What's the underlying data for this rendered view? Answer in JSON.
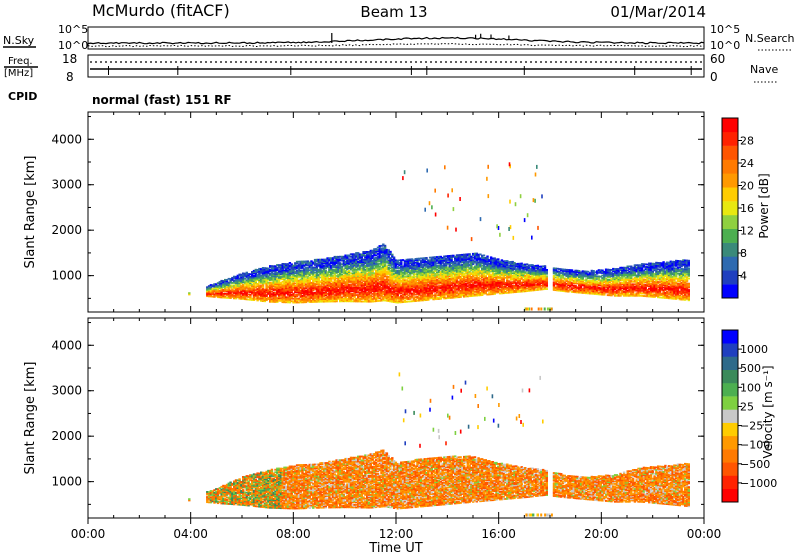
{
  "header": {
    "station": "McMurdo (fitACF)",
    "beam": "Beam 13",
    "date": "01/Mar/2014"
  },
  "noise_panel": {
    "left_label": "N.Sky",
    "right_label": "N.Search",
    "left_ticks": [
      "10^5",
      "10^0"
    ],
    "right_ticks": [
      "10^5",
      "10^0"
    ]
  },
  "freq_panel": {
    "left_label_1": "Freq.",
    "left_label_2": "[MHz]",
    "left_ticks": [
      "18",
      "8"
    ],
    "right_ticks": [
      "60",
      "0"
    ],
    "right_label": "Nave",
    "cpid_label": "CPID",
    "cpid_value": "normal (fast) 151 RF"
  },
  "colors": {
    "power": [
      "#0000ff",
      "#1f3fbf",
      "#2e6ab0",
      "#3a8a7a",
      "#4caf50",
      "#8fd040",
      "#e8e810",
      "#ffcc00",
      "#ff9900",
      "#ff7a00",
      "#ff5500",
      "#ff2200",
      "#ff0000"
    ],
    "velocity": [
      "#0000ff",
      "#1f3fbf",
      "#2e6a8a",
      "#3a8a5a",
      "#4caf50",
      "#7ed040",
      "#c8c8c8",
      "#ffcc00",
      "#ff9900",
      "#ff7a00",
      "#ff5500",
      "#ff2200",
      "#ff0000"
    ]
  },
  "chart_data": [
    {
      "type": "heatmap",
      "name": "power",
      "ylabel": "Slant Range [km]",
      "yticks": [
        "1000",
        "2000",
        "3000",
        "4000"
      ],
      "ylim": [
        200,
        4600
      ],
      "colorbar_label": "Power [dB]",
      "colorbar_ticks": [
        "4",
        "8",
        "12",
        "16",
        "20",
        "24",
        "28"
      ],
      "colorbar_range": [
        0,
        32
      ],
      "scatter_band": [
        {
          "t": 3.9,
          "lo": 580,
          "hi": 620
        },
        {
          "t": 5.0,
          "lo": 520,
          "hi": 850
        },
        {
          "t": 6.0,
          "lo": 480,
          "hi": 1050
        },
        {
          "t": 7.0,
          "lo": 420,
          "hi": 1200
        },
        {
          "t": 8.0,
          "lo": 400,
          "hi": 1300
        },
        {
          "t": 9.0,
          "lo": 420,
          "hi": 1350
        },
        {
          "t": 10.0,
          "lo": 430,
          "hi": 1450
        },
        {
          "t": 11.0,
          "lo": 420,
          "hi": 1550
        },
        {
          "t": 11.5,
          "lo": 450,
          "hi": 1700
        },
        {
          "t": 12.0,
          "lo": 400,
          "hi": 1350
        },
        {
          "t": 13.0,
          "lo": 450,
          "hi": 1400
        },
        {
          "t": 14.0,
          "lo": 500,
          "hi": 1450
        },
        {
          "t": 15.0,
          "lo": 550,
          "hi": 1500
        },
        {
          "t": 16.0,
          "lo": 600,
          "hi": 1350
        },
        {
          "t": 17.0,
          "lo": 650,
          "hi": 1250
        },
        {
          "t": 17.8,
          "lo": 700,
          "hi": 1200
        },
        {
          "t": 18.5,
          "lo": 650,
          "hi": 1150
        },
        {
          "t": 19.5,
          "lo": 600,
          "hi": 1100
        },
        {
          "t": 20.5,
          "lo": 550,
          "hi": 1150
        },
        {
          "t": 21.5,
          "lo": 550,
          "hi": 1250
        },
        {
          "t": 22.5,
          "lo": 500,
          "hi": 1300
        },
        {
          "t": 23.4,
          "lo": 450,
          "hi": 1350
        }
      ]
    },
    {
      "type": "heatmap",
      "name": "velocity",
      "ylabel": "Slant Range [km]",
      "yticks": [
        "1000",
        "2000",
        "3000",
        "4000"
      ],
      "ylim": [
        200,
        4600
      ],
      "colorbar_label": "Velocity [m s⁻¹]",
      "colorbar_ticks": [
        "1000",
        "500",
        "100",
        "25",
        "−25",
        "−100",
        "−500",
        "−1000"
      ],
      "scatter_band": [
        {
          "t": 3.9,
          "lo": 580,
          "hi": 620
        },
        {
          "t": 5.0,
          "lo": 520,
          "hi": 850
        },
        {
          "t": 6.0,
          "lo": 480,
          "hi": 1100
        },
        {
          "t": 7.0,
          "lo": 420,
          "hi": 1250
        },
        {
          "t": 8.0,
          "lo": 400,
          "hi": 1350
        },
        {
          "t": 9.0,
          "lo": 420,
          "hi": 1400
        },
        {
          "t": 10.0,
          "lo": 430,
          "hi": 1500
        },
        {
          "t": 11.0,
          "lo": 420,
          "hi": 1600
        },
        {
          "t": 11.5,
          "lo": 450,
          "hi": 1700
        },
        {
          "t": 12.0,
          "lo": 400,
          "hi": 1400
        },
        {
          "t": 13.0,
          "lo": 450,
          "hi": 1500
        },
        {
          "t": 14.0,
          "lo": 500,
          "hi": 1550
        },
        {
          "t": 15.0,
          "lo": 550,
          "hi": 1550
        },
        {
          "t": 16.0,
          "lo": 600,
          "hi": 1400
        },
        {
          "t": 17.0,
          "lo": 650,
          "hi": 1300
        },
        {
          "t": 17.8,
          "lo": 700,
          "hi": 1250
        },
        {
          "t": 18.5,
          "lo": 650,
          "hi": 1150
        },
        {
          "t": 19.5,
          "lo": 600,
          "hi": 1100
        },
        {
          "t": 20.5,
          "lo": 550,
          "hi": 1150
        },
        {
          "t": 21.5,
          "lo": 550,
          "hi": 1300
        },
        {
          "t": 22.5,
          "lo": 500,
          "hi": 1350
        },
        {
          "t": 23.4,
          "lo": 450,
          "hi": 1400
        }
      ]
    }
  ],
  "time_axis": {
    "label": "Time UT",
    "ticks": [
      "00:00",
      "04:00",
      "08:00",
      "12:00",
      "16:00",
      "20:00",
      "00:00"
    ],
    "range_hours": [
      0,
      24
    ]
  }
}
